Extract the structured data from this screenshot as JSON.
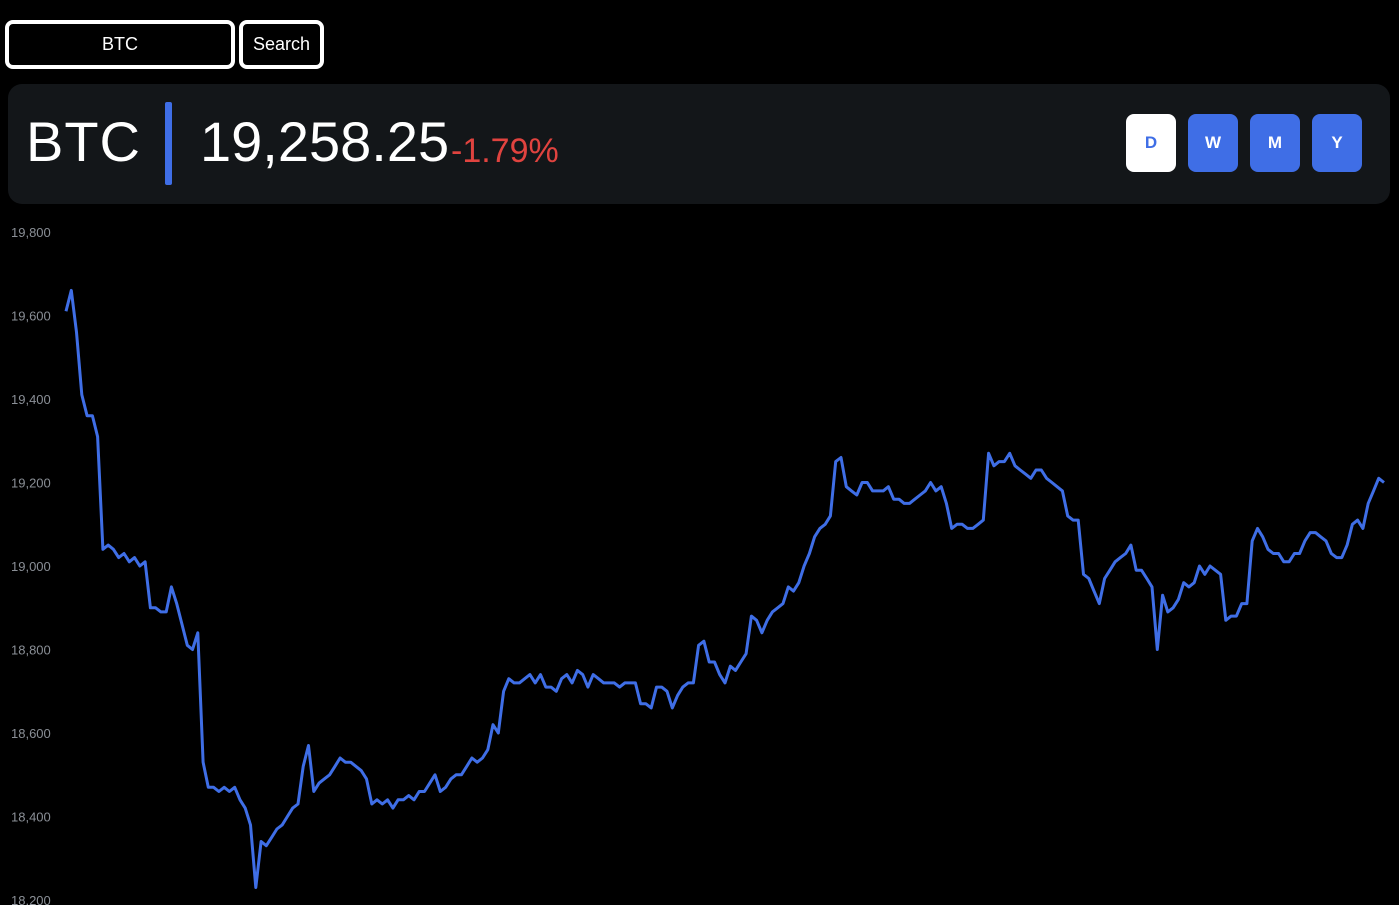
{
  "search": {
    "value": "BTC",
    "button_label": "Search"
  },
  "ticker": {
    "symbol": "BTC",
    "price": "19,258.25",
    "change": "-1.79%"
  },
  "range_buttons": [
    {
      "label": "D",
      "active": true
    },
    {
      "label": "W",
      "active": false
    },
    {
      "label": "M",
      "active": false
    },
    {
      "label": "Y",
      "active": false
    }
  ],
  "colors": {
    "accent": "#3f6ee6",
    "negative": "#e0433f",
    "card_bg": "#131619",
    "axis_text": "#8a8f96"
  },
  "chart_data": {
    "type": "line",
    "title": "",
    "xlabel": "",
    "ylabel": "",
    "ylim": [
      18200,
      19800
    ],
    "y_ticks": [
      "19,800",
      "19,600",
      "19,400",
      "19,200",
      "19,000",
      "18,800",
      "18,600",
      "18,400",
      "18,200"
    ],
    "grid": false,
    "series": [
      {
        "values": [
          19610,
          19660,
          19560,
          19410,
          19360,
          19360,
          19310,
          19040,
          19050,
          19040,
          19020,
          19030,
          19010,
          19020,
          19000,
          19010,
          18900,
          18900,
          18890,
          18890,
          18950,
          18910,
          18860,
          18810,
          18800,
          18840,
          18530,
          18470,
          18470,
          18460,
          18470,
          18460,
          18470,
          18440,
          18420,
          18380,
          18230,
          18340,
          18330,
          18350,
          18370,
          18380,
          18400,
          18420,
          18430,
          18520,
          18570,
          18460,
          18480,
          18490,
          18500,
          18520,
          18540,
          18530,
          18530,
          18520,
          18510,
          18490,
          18430,
          18440,
          18430,
          18440,
          18420,
          18440,
          18440,
          18450,
          18440,
          18460,
          18460,
          18480,
          18500,
          18460,
          18470,
          18490,
          18500,
          18500,
          18520,
          18540,
          18530,
          18540,
          18560,
          18620,
          18600,
          18700,
          18730,
          18720,
          18720,
          18730,
          18740,
          18720,
          18740,
          18710,
          18710,
          18700,
          18730,
          18740,
          18720,
          18750,
          18740,
          18710,
          18740,
          18730,
          18720,
          18720,
          18720,
          18710,
          18720,
          18720,
          18720,
          18670,
          18670,
          18660,
          18710,
          18710,
          18700,
          18660,
          18690,
          18710,
          18720,
          18720,
          18810,
          18820,
          18770,
          18770,
          18740,
          18720,
          18760,
          18750,
          18770,
          18790,
          18880,
          18870,
          18840,
          18870,
          18890,
          18900,
          18910,
          18950,
          18940,
          18960,
          19000,
          19030,
          19070,
          19090,
          19100,
          19120,
          19250,
          19260,
          19190,
          19180,
          19170,
          19200,
          19200,
          19180,
          19180,
          19180,
          19190,
          19160,
          19160,
          19150,
          19150,
          19160,
          19170,
          19180,
          19200,
          19180,
          19190,
          19150,
          19090,
          19100,
          19100,
          19090,
          19090,
          19100,
          19110,
          19270,
          19240,
          19250,
          19250,
          19270,
          19240,
          19230,
          19220,
          19210,
          19230,
          19230,
          19210,
          19200,
          19190,
          19180,
          19120,
          19110,
          19110,
          18980,
          18970,
          18940,
          18910,
          18970,
          18990,
          19010,
          19020,
          19030,
          19050,
          18990,
          18990,
          18970,
          18950,
          18800,
          18930,
          18890,
          18900,
          18920,
          18960,
          18950,
          18960,
          19000,
          18980,
          19000,
          18990,
          18980,
          18870,
          18880,
          18880,
          18910,
          18910,
          19060,
          19090,
          19070,
          19040,
          19030,
          19030,
          19010,
          19010,
          19030,
          19030,
          19060,
          19080,
          19080,
          19070,
          19060,
          19030,
          19020,
          19020,
          19050,
          19100,
          19110,
          19090,
          19150,
          19180,
          19210,
          19200
        ]
      }
    ]
  }
}
